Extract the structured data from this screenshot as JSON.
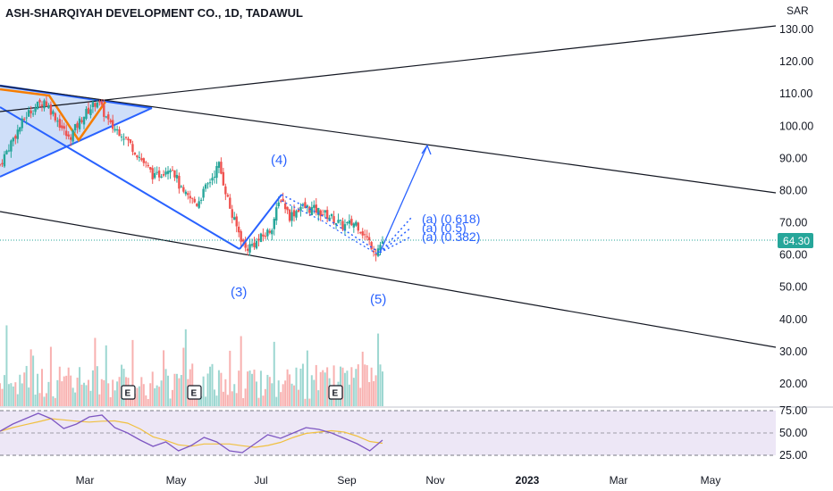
{
  "header": {
    "title": "ASH-SHARQIYAH DEVELOPMENT CO., 1D, TADAWUL",
    "currency": "SAR"
  },
  "colors": {
    "up": "#26a69a",
    "down": "#ef5350",
    "accent": "#2962ff",
    "last_price_tag": "#26a69a",
    "rsi": "#7e57c2",
    "rsi_ma": "#f0c040"
  },
  "last_price": {
    "label": "64.30",
    "value": 64.3
  },
  "wave_labels": [
    {
      "text": "(3)"
    },
    {
      "text": "(4)"
    },
    {
      "text": "(5)"
    }
  ],
  "fib_labels": [
    {
      "text": "(a) (0.618)"
    },
    {
      "text": "(a) (0.5)"
    },
    {
      "text": "(a) (0.382)"
    }
  ],
  "earnings_marker": "E",
  "chart_data": {
    "type": "candlestick",
    "title": "ASH-SHARQIYAH DEVELOPMENT CO., 1D, TADAWUL",
    "price_axis": {
      "unit": "SAR",
      "ticks": [
        130,
        120,
        110,
        100,
        90,
        80,
        70,
        60,
        50,
        40,
        30,
        20
      ],
      "tick_labels": [
        "130.00",
        "120.00",
        "110.00",
        "100.00",
        "90.00",
        "80.00",
        "70.00",
        "60.00",
        "50.00",
        "40.00",
        "30.00",
        "20.00"
      ]
    },
    "time_axis": {
      "ticks": [
        "Mar",
        "May",
        "Jul",
        "Sep",
        "Nov",
        "2023",
        "Mar",
        "May"
      ]
    },
    "rsi_axis": {
      "ticks": [
        75,
        50,
        25
      ],
      "tick_labels": [
        "75.00",
        "50.00",
        "25.00"
      ]
    },
    "close_anchors": [
      {
        "d": 0,
        "c": 88
      },
      {
        "d": 10,
        "c": 95
      },
      {
        "d": 25,
        "c": 104
      },
      {
        "d": 40,
        "c": 108
      },
      {
        "d": 50,
        "c": 103
      },
      {
        "d": 62,
        "c": 96
      },
      {
        "d": 75,
        "c": 103
      },
      {
        "d": 88,
        "c": 108
      },
      {
        "d": 100,
        "c": 100
      },
      {
        "d": 110,
        "c": 98
      },
      {
        "d": 125,
        "c": 91
      },
      {
        "d": 140,
        "c": 84
      },
      {
        "d": 155,
        "c": 88
      },
      {
        "d": 165,
        "c": 79
      },
      {
        "d": 178,
        "c": 76
      },
      {
        "d": 190,
        "c": 83
      },
      {
        "d": 198,
        "c": 88
      },
      {
        "d": 210,
        "c": 72
      },
      {
        "d": 222,
        "c": 62
      },
      {
        "d": 232,
        "c": 64
      },
      {
        "d": 245,
        "c": 68
      },
      {
        "d": 254,
        "c": 78
      },
      {
        "d": 262,
        "c": 72
      },
      {
        "d": 272,
        "c": 75
      },
      {
        "d": 285,
        "c": 74
      },
      {
        "d": 298,
        "c": 72
      },
      {
        "d": 310,
        "c": 69
      },
      {
        "d": 322,
        "c": 70
      },
      {
        "d": 332,
        "c": 65
      },
      {
        "d": 340,
        "c": 61
      },
      {
        "d": 346,
        "c": 64.3
      }
    ],
    "series": [
      {
        "name": "RSI",
        "values": [
          52,
          60,
          66,
          72,
          66,
          55,
          60,
          68,
          70,
          56,
          50,
          42,
          35,
          40,
          30,
          36,
          45,
          40,
          30,
          28,
          38,
          48,
          44,
          50,
          56,
          54,
          50,
          44,
          38,
          30,
          42
        ]
      }
    ]
  }
}
